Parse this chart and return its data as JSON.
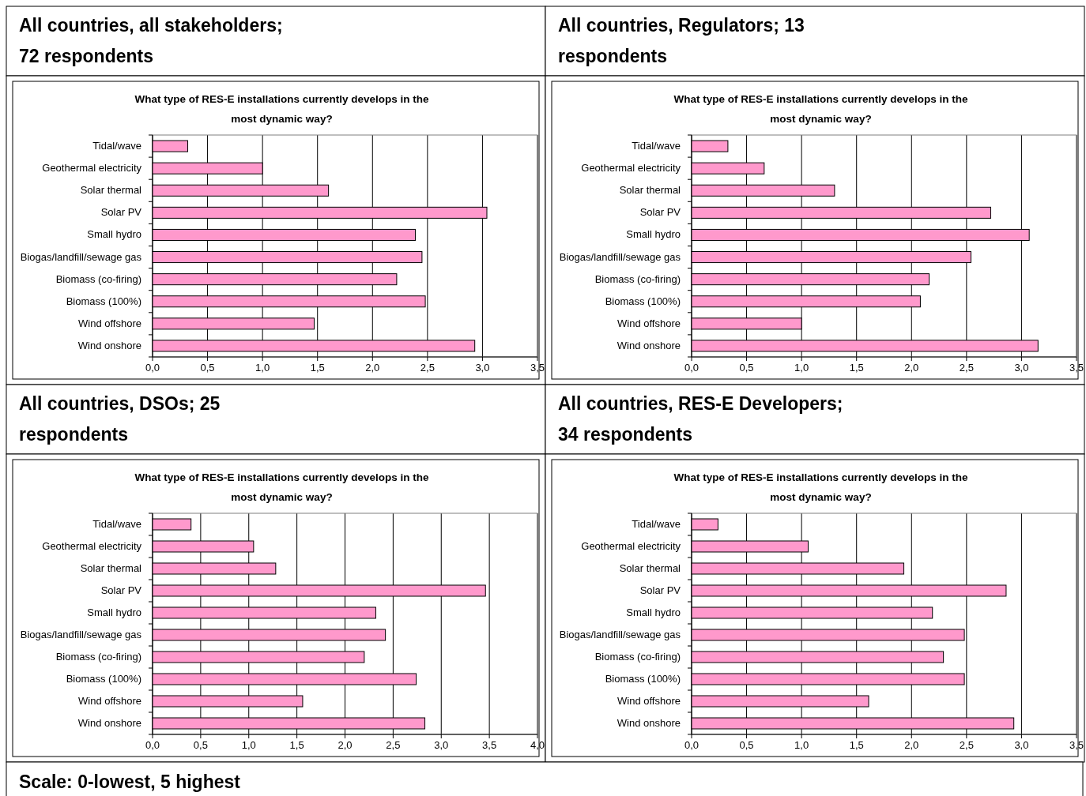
{
  "chart_data": [
    {
      "type": "bar",
      "orientation": "horizontal",
      "subtitle": "All countries, all stakeholders; 72 respondents",
      "title": "What type of RES-E installations currently develops in the most dynamic way?",
      "categories": [
        "Tidal/wave",
        "Geothermal electricity",
        "Solar thermal",
        "Solar PV",
        "Small hydro",
        "Biogas/landfill/sewage gas",
        "Biomass (co-firing)",
        "Biomass (100%)",
        "Wind offshore",
        "Wind onshore"
      ],
      "values": [
        0.32,
        1.0,
        1.6,
        3.04,
        2.39,
        2.45,
        2.22,
        2.48,
        1.47,
        2.93
      ],
      "color": "#ff99cc",
      "xlim": [
        0,
        3.5
      ],
      "xticks": [
        {
          "value": 0,
          "label": "0,0"
        },
        {
          "value": 0.5,
          "label": "0,5"
        },
        {
          "value": 1,
          "label": "1,0"
        },
        {
          "value": 1.5,
          "label": "1,5"
        },
        {
          "value": 2,
          "label": "2,0"
        },
        {
          "value": 2.5,
          "label": "2,5"
        },
        {
          "value": 3,
          "label": "3,0"
        },
        {
          "value": 3.5,
          "label": "3,5"
        }
      ],
      "grid": "x"
    },
    {
      "type": "bar",
      "orientation": "horizontal",
      "subtitle": "All countries, Regulators; 13 respondents",
      "title": "What type of RES-E installations currently develops in the most dynamic way?",
      "categories": [
        "Tidal/wave",
        "Geothermal electricity",
        "Solar thermal",
        "Solar PV",
        "Small hydro",
        "Biogas/landfill/sewage gas",
        "Biomass (co-firing)",
        "Biomass (100%)",
        "Wind offshore",
        "Wind onshore"
      ],
      "values": [
        0.33,
        0.66,
        1.3,
        2.72,
        3.07,
        2.54,
        2.16,
        2.08,
        1.0,
        3.15
      ],
      "color": "#ff99cc",
      "xlim": [
        0,
        3.5
      ],
      "xticks": [
        {
          "value": 0,
          "label": "0,0"
        },
        {
          "value": 0.5,
          "label": "0,5"
        },
        {
          "value": 1,
          "label": "1,0"
        },
        {
          "value": 1.5,
          "label": "1,5"
        },
        {
          "value": 2,
          "label": "2,0"
        },
        {
          "value": 2.5,
          "label": "2,5"
        },
        {
          "value": 3,
          "label": "3,0"
        },
        {
          "value": 3.5,
          "label": "3,5"
        }
      ],
      "grid": "x"
    },
    {
      "type": "bar",
      "orientation": "horizontal",
      "subtitle": "All countries, DSOs; 25 respondents",
      "title": "What type of RES-E installations currently develops in the most dynamic way?",
      "categories": [
        "Tidal/wave",
        "Geothermal electricity",
        "Solar thermal",
        "Solar PV",
        "Small hydro",
        "Biogas/landfill/sewage gas",
        "Biomass (co-firing)",
        "Biomass (100%)",
        "Wind offshore",
        "Wind onshore"
      ],
      "values": [
        0.4,
        1.05,
        1.28,
        3.46,
        2.32,
        2.42,
        2.2,
        2.74,
        1.56,
        2.83
      ],
      "color": "#ff99cc",
      "xlim": [
        0,
        4
      ],
      "xticks": [
        {
          "value": 0,
          "label": "0,0"
        },
        {
          "value": 0.5,
          "label": "0,5"
        },
        {
          "value": 1,
          "label": "1,0"
        },
        {
          "value": 1.5,
          "label": "1,5"
        },
        {
          "value": 2,
          "label": "2,0"
        },
        {
          "value": 2.5,
          "label": "2,5"
        },
        {
          "value": 3,
          "label": "3,0"
        },
        {
          "value": 3.5,
          "label": "3,5"
        },
        {
          "value": 4,
          "label": "4,0"
        }
      ],
      "grid": "x"
    },
    {
      "type": "bar",
      "orientation": "horizontal",
      "subtitle": "All countries, RES-E Developers; 34 respondents",
      "title": "What type of RES-E installations currently develops in the most dynamic way?",
      "categories": [
        "Tidal/wave",
        "Geothermal electricity",
        "Solar thermal",
        "Solar PV",
        "Small hydro",
        "Biogas/landfill/sewage gas",
        "Biomass (co-firing)",
        "Biomass (100%)",
        "Wind offshore",
        "Wind onshore"
      ],
      "values": [
        0.24,
        1.06,
        1.93,
        2.86,
        2.19,
        2.48,
        2.29,
        2.48,
        1.61,
        2.93
      ],
      "color": "#ff99cc",
      "xlim": [
        0,
        3.5
      ],
      "xticks": [
        {
          "value": 0,
          "label": "0,0"
        },
        {
          "value": 0.5,
          "label": "0,5"
        },
        {
          "value": 1,
          "label": "1,0"
        },
        {
          "value": 1.5,
          "label": "1,5"
        },
        {
          "value": 2,
          "label": "2,0"
        },
        {
          "value": 2.5,
          "label": "2,5"
        },
        {
          "value": 3,
          "label": "3,0"
        },
        {
          "value": 3.5,
          "label": "3,5"
        }
      ],
      "grid": "x",
      "annotations": [
        "Scale: 0-lowest, 5 highest"
      ]
    }
  ]
}
